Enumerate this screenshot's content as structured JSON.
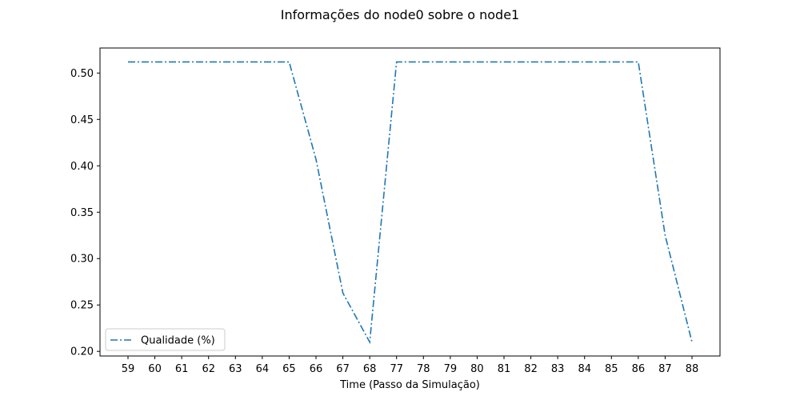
{
  "chart_data": {
    "type": "line",
    "title": "Informações do node0 sobre o node1",
    "xlabel": "Time (Passo da Simulação)",
    "ylabel": "",
    "categories": [
      "59",
      "60",
      "61",
      "62",
      "63",
      "64",
      "65",
      "66",
      "67",
      "68",
      "77",
      "78",
      "79",
      "80",
      "81",
      "82",
      "83",
      "84",
      "85",
      "86",
      "87",
      "88"
    ],
    "series": [
      {
        "name": "Qualidade (%)",
        "values": [
          0.512,
          0.512,
          0.512,
          0.512,
          0.512,
          0.512,
          0.512,
          0.407,
          0.263,
          0.21,
          0.512,
          0.512,
          0.512,
          0.512,
          0.512,
          0.512,
          0.512,
          0.512,
          0.512,
          0.512,
          0.325,
          0.21
        ],
        "color": "#1f77b4",
        "linestyle": "dash-dot"
      }
    ],
    "yticks": [
      "0.20",
      "0.25",
      "0.30",
      "0.35",
      "0.40",
      "0.45",
      "0.50"
    ],
    "ylim": [
      0.195,
      0.527
    ],
    "grid": false,
    "legend_position": "lower-left"
  }
}
